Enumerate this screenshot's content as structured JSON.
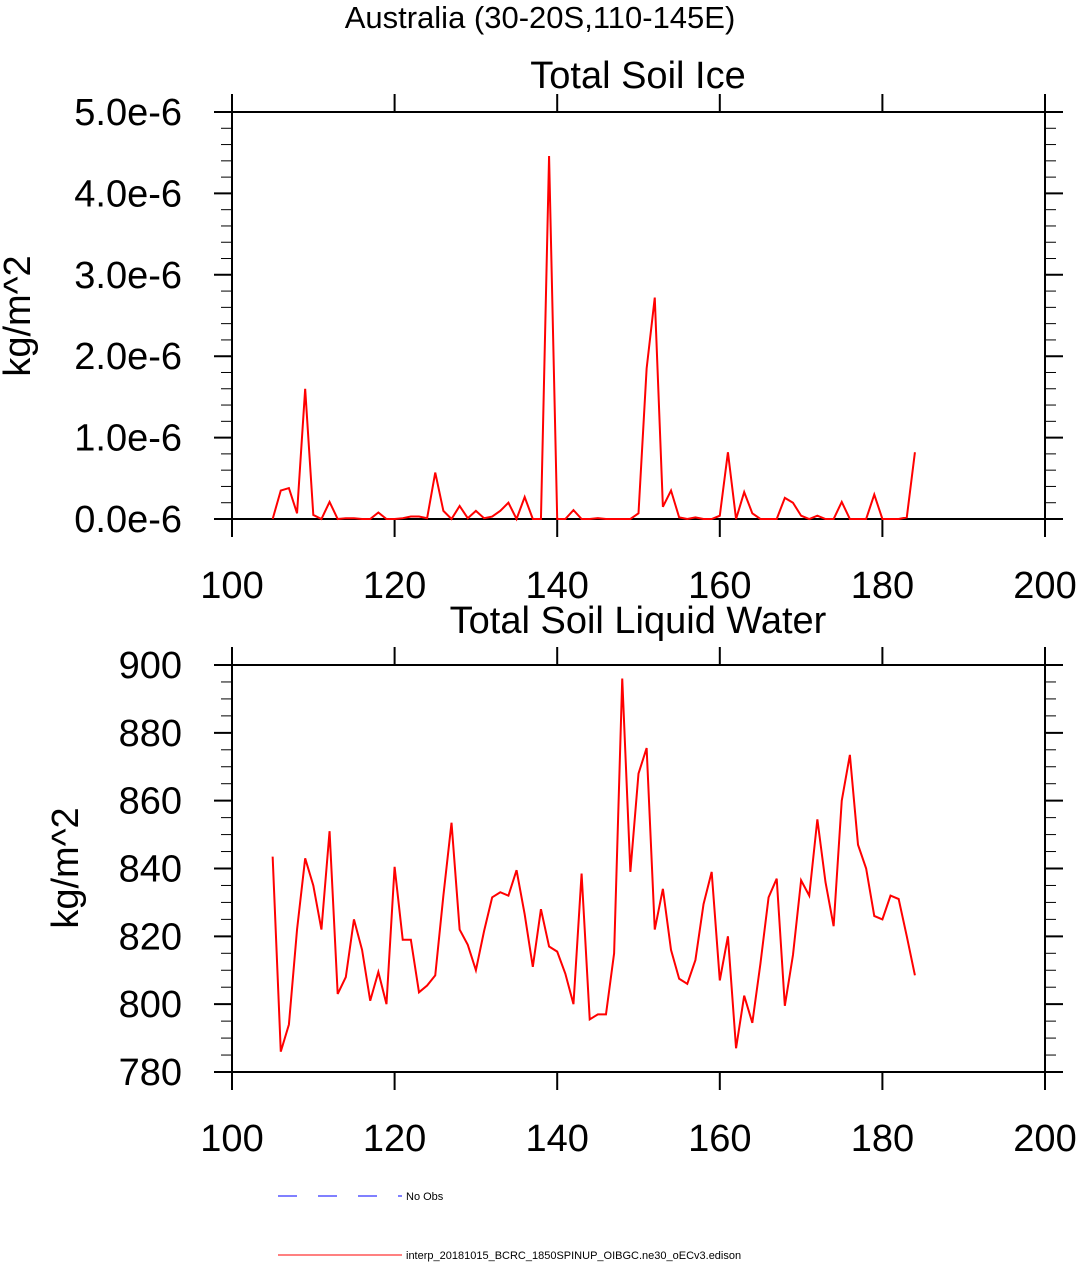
{
  "page_title": "Australia (30-20S,110-145E)",
  "legend": {
    "entries": [
      {
        "label": "No Obs",
        "color": "#0000ff",
        "style": "dashed"
      },
      {
        "label": "interp_20181015_BCRC_1850SPINUP_OIBGC.ne30_oECv3.edison",
        "color": "#ff0000",
        "style": "solid"
      }
    ]
  },
  "chart_data": [
    {
      "type": "line",
      "title": "Total Soil Ice",
      "xlabel": "",
      "ylabel": "kg/m^2",
      "xlim": [
        100,
        200
      ],
      "ylim": [
        0,
        5e-06
      ],
      "grid": false,
      "x_ticks": [
        "100",
        "120",
        "140",
        "160",
        "180",
        "200"
      ],
      "y_ticks": [
        "0.0e-6",
        "1.0e-6",
        "2.0e-6",
        "3.0e-6",
        "4.0e-6",
        "5.0e-6"
      ],
      "series": [
        {
          "name": "interp_20181015_BCRC_1850SPINUP_OIBGC.ne30_oECv3.edison",
          "color": "#ff0000",
          "x": [
            105,
            106,
            107,
            108,
            109,
            110,
            111,
            112,
            113,
            114,
            115,
            116,
            117,
            118,
            119,
            120,
            121,
            122,
            123,
            124,
            125,
            126,
            127,
            128,
            129,
            130,
            131,
            132,
            133,
            134,
            135,
            136,
            137,
            138,
            139,
            140,
            141,
            142,
            143,
            144,
            145,
            146,
            147,
            148,
            149,
            150,
            151,
            152,
            153,
            154,
            155,
            156,
            157,
            158,
            159,
            160,
            161,
            162,
            163,
            164,
            165,
            166,
            167,
            168,
            169,
            170,
            171,
            172,
            173,
            174,
            175,
            176,
            177,
            178,
            179,
            180,
            181,
            182,
            183,
            184
          ],
          "values": [
            0,
            3.5e-07,
            3.8e-07,
            7e-08,
            1.6e-06,
            5e-08,
            0,
            2.1e-07,
            0,
            1e-08,
            1e-08,
            0,
            0,
            8e-08,
            0,
            0,
            1e-08,
            3e-08,
            3e-08,
            1e-08,
            5.7e-07,
            1e-07,
            0,
            1.6e-07,
            1e-08,
            1e-07,
            1e-08,
            3e-08,
            1e-07,
            2e-07,
            0,
            2.7e-07,
            0,
            0,
            4.46e-06,
            0,
            0,
            1.1e-07,
            0,
            0,
            1e-08,
            0,
            0,
            0,
            0,
            7e-08,
            1.85e-06,
            2.72e-06,
            1.5e-07,
            3.5e-07,
            2e-08,
            0,
            2e-08,
            0,
            0,
            4e-08,
            8.2e-07,
            0,
            3.3e-07,
            7e-08,
            0,
            0,
            0,
            2.6e-07,
            2e-07,
            4e-08,
            0,
            4e-08,
            0,
            0,
            2.1e-07,
            0,
            0,
            0,
            3e-07,
            0,
            0,
            0,
            2e-08,
            8.2e-07
          ]
        }
      ]
    },
    {
      "type": "line",
      "title": "Total Soil Liquid Water",
      "xlabel": "",
      "ylabel": "kg/m^2",
      "xlim": [
        100,
        200
      ],
      "ylim": [
        780,
        900
      ],
      "grid": false,
      "x_ticks": [
        "100",
        "120",
        "140",
        "160",
        "180",
        "200"
      ],
      "y_ticks": [
        "780",
        "800",
        "820",
        "840",
        "860",
        "880",
        "900"
      ],
      "series": [
        {
          "name": "interp_20181015_BCRC_1850SPINUP_OIBGC.ne30_oECv3.edison",
          "color": "#ff0000",
          "x": [
            105,
            106,
            107,
            108,
            109,
            110,
            111,
            112,
            113,
            114,
            115,
            116,
            117,
            118,
            119,
            120,
            121,
            122,
            123,
            124,
            125,
            126,
            127,
            128,
            129,
            130,
            131,
            132,
            133,
            134,
            135,
            136,
            137,
            138,
            139,
            140,
            141,
            142,
            143,
            144,
            145,
            146,
            147,
            148,
            149,
            150,
            151,
            152,
            153,
            154,
            155,
            156,
            157,
            158,
            159,
            160,
            161,
            162,
            163,
            164,
            165,
            166,
            167,
            168,
            169,
            170,
            171,
            172,
            173,
            174,
            175,
            176,
            177,
            178,
            179,
            180,
            181,
            182,
            183,
            184
          ],
          "values": [
            843.5,
            786,
            794,
            822,
            843,
            835,
            822,
            851,
            803,
            808,
            825,
            816,
            801,
            809.5,
            800,
            840.5,
            819,
            819,
            803.5,
            805.5,
            808.5,
            832,
            853.5,
            822,
            817.5,
            810,
            821.5,
            831.5,
            833,
            832,
            839.5,
            826.5,
            811,
            828,
            817,
            815.5,
            809,
            800,
            838.5,
            795.5,
            797,
            797,
            815,
            896,
            839,
            868,
            875.5,
            822,
            834,
            816,
            807.5,
            806,
            813,
            829.5,
            839,
            807,
            820,
            787,
            802.5,
            794.5,
            812,
            831.5,
            837,
            799.5,
            814.5,
            836.5,
            832,
            854.5,
            836,
            823,
            860,
            873.5,
            847,
            840,
            826,
            825,
            832,
            831,
            820,
            808.5
          ]
        }
      ]
    }
  ]
}
